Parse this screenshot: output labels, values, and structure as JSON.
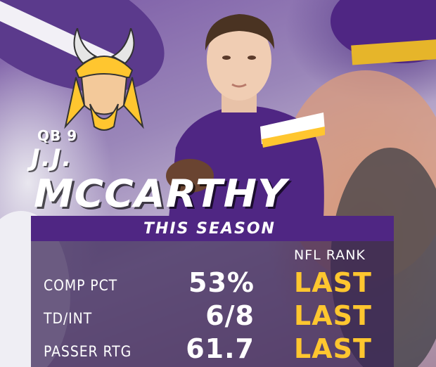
{
  "player": {
    "position_number": "QB 9",
    "first_name": "J.J.",
    "last_name": "MCCARTHY"
  },
  "stats_header": "THIS SEASON",
  "rank_header": "NFL RANK",
  "stats": [
    {
      "label": "COMP PCT",
      "value": "53%",
      "rank": "LAST"
    },
    {
      "label": "TD/INT",
      "value": "6/8",
      "rank": "LAST"
    },
    {
      "label": "PASSER RTG",
      "value": "61.7",
      "rank": "LAST"
    }
  ],
  "colors": {
    "team_purple": "#4f2683",
    "team_gold": "#ffc62f"
  },
  "icons": {
    "team_logo": "vikings-head-icon"
  }
}
